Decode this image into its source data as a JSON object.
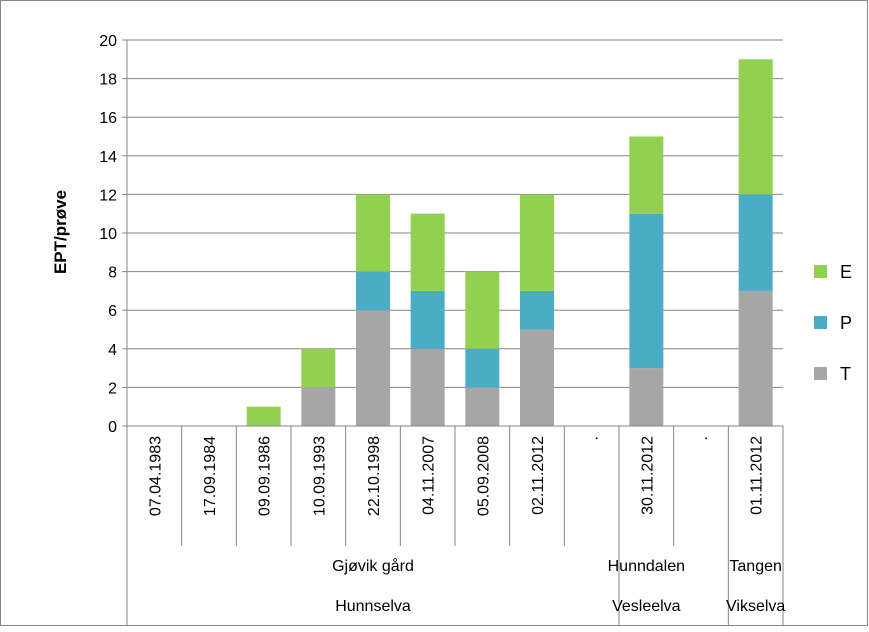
{
  "chart_data": {
    "type": "bar",
    "stacked": true,
    "categories": [
      "07.04.1983",
      "17.09.1984",
      "09.09.1986",
      "10.09.1993",
      "22.10.1998",
      "04.11.2007",
      "05.09.2008",
      "02.11.2012",
      ".",
      "30.11.2012",
      ".",
      "01.11.2012"
    ],
    "series": [
      {
        "name": "T",
        "color": "#a6a6a6",
        "values": [
          0,
          0,
          0,
          2,
          6,
          4,
          2,
          5,
          0,
          3,
          0,
          7
        ]
      },
      {
        "name": "P",
        "color": "#4bacc6",
        "values": [
          0,
          0,
          0,
          0,
          2,
          3,
          2,
          2,
          0,
          8,
          0,
          5
        ]
      },
      {
        "name": "E",
        "color": "#92d050",
        "values": [
          0,
          0,
          1,
          2,
          4,
          4,
          4,
          5,
          0,
          4,
          0,
          7
        ]
      }
    ],
    "legend_order": [
      "E",
      "P",
      "T"
    ],
    "legend_position": "right",
    "ylabel": "EPT/prøve",
    "xlabel": "",
    "ylim": [
      0,
      20
    ],
    "ytick_step": 2,
    "yticks": [
      "0",
      "2",
      "4",
      "6",
      "8",
      "10",
      "12",
      "14",
      "16",
      "18",
      "20"
    ],
    "grid": true,
    "station_groups": [
      {
        "label": "Gjøvik gård",
        "start": 0,
        "end": 8
      },
      {
        "label": "Hunndalen",
        "start": 9,
        "end": 9
      },
      {
        "label": "Tangen",
        "start": 11,
        "end": 11
      }
    ],
    "river_groups": [
      {
        "label": "Hunnselva",
        "start": 0,
        "end": 8
      },
      {
        "label": "Vesleelva",
        "start": 9,
        "end": 9
      },
      {
        "label": "Vikselva",
        "start": 11,
        "end": 11
      }
    ]
  }
}
